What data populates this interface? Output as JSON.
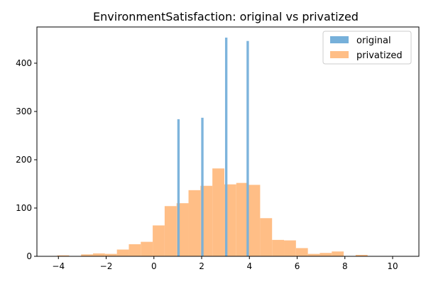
{
  "chart_data": {
    "type": "bar",
    "title": "EnvironmentSatisfaction: original vs privatized",
    "xlabel": "",
    "ylabel": "",
    "xlim": [
      -4.9,
      11.1
    ],
    "ylim": [
      0,
      475
    ],
    "x_ticks": [
      -4,
      -2,
      0,
      2,
      4,
      6,
      8,
      10
    ],
    "x_tick_labels": [
      "−4",
      "−2",
      "0",
      "2",
      "4",
      "6",
      "8",
      "10"
    ],
    "y_ticks": [
      0,
      100,
      200,
      300,
      400
    ],
    "y_tick_labels": [
      "0",
      "100",
      "200",
      "300",
      "400"
    ],
    "grid": false,
    "legend_position": "top-right",
    "series": [
      {
        "name": "privatized",
        "color": "#ffbe86",
        "bin_width": 0.5,
        "bins": [
          {
            "x0": -4.05,
            "count": 2
          },
          {
            "x0": -3.55,
            "count": 0
          },
          {
            "x0": -3.05,
            "count": 4
          },
          {
            "x0": -2.55,
            "count": 6
          },
          {
            "x0": -2.05,
            "count": 5
          },
          {
            "x0": -1.55,
            "count": 14
          },
          {
            "x0": -1.05,
            "count": 25
          },
          {
            "x0": -0.55,
            "count": 30
          },
          {
            "x0": -0.05,
            "count": 64
          },
          {
            "x0": 0.45,
            "count": 104
          },
          {
            "x0": 0.95,
            "count": 110
          },
          {
            "x0": 1.45,
            "count": 137
          },
          {
            "x0": 1.95,
            "count": 146
          },
          {
            "x0": 2.45,
            "count": 182
          },
          {
            "x0": 2.95,
            "count": 149
          },
          {
            "x0": 3.45,
            "count": 152
          },
          {
            "x0": 3.95,
            "count": 148
          },
          {
            "x0": 4.45,
            "count": 79
          },
          {
            "x0": 4.95,
            "count": 34
          },
          {
            "x0": 5.45,
            "count": 33
          },
          {
            "x0": 5.95,
            "count": 17
          },
          {
            "x0": 6.45,
            "count": 5
          },
          {
            "x0": 6.95,
            "count": 7
          },
          {
            "x0": 7.45,
            "count": 10
          },
          {
            "x0": 7.95,
            "count": 0
          },
          {
            "x0": 8.45,
            "count": 3
          }
        ]
      },
      {
        "name": "original",
        "color": "#76b0da",
        "bin_width": 0.1,
        "bins": [
          {
            "x0": 0.98,
            "count": 284
          },
          {
            "x0": 1.98,
            "count": 287
          },
          {
            "x0": 2.98,
            "count": 453
          },
          {
            "x0": 3.88,
            "count": 446
          }
        ]
      }
    ],
    "legend": [
      {
        "label": "original",
        "color": "#76b0da"
      },
      {
        "label": "privatized",
        "color": "#ffbe86"
      }
    ]
  }
}
